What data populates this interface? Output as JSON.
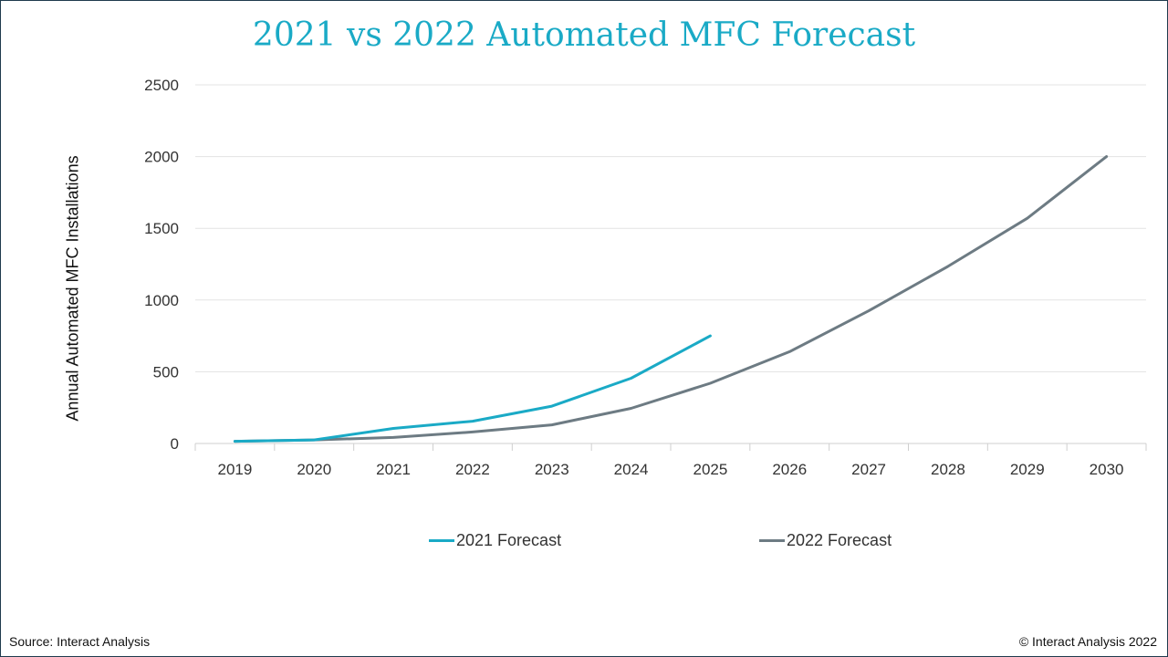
{
  "chart_data": {
    "type": "line",
    "title": "2021 vs 2022 Automated MFC Forecast",
    "xlabel": "",
    "ylabel": "Annual Automated MFC Installations",
    "categories": [
      "2019",
      "2020",
      "2021",
      "2022",
      "2023",
      "2024",
      "2025",
      "2026",
      "2027",
      "2028",
      "2029",
      "2030"
    ],
    "ylim": [
      0,
      2500
    ],
    "yticks": [
      0,
      500,
      1000,
      1500,
      2000,
      2500
    ],
    "grid": true,
    "legend_position": "bottom",
    "series": [
      {
        "name": "2021 Forecast",
        "color": "#1aaac6",
        "values": [
          15,
          25,
          105,
          155,
          260,
          455,
          750,
          null,
          null,
          null,
          null,
          null
        ]
      },
      {
        "name": "2022 Forecast",
        "color": "#6d7b83",
        "values": [
          15,
          25,
          42,
          80,
          130,
          245,
          420,
          640,
          925,
          1235,
          1570,
          2000
        ]
      }
    ]
  },
  "footer": {
    "source": "Source: Interact Analysis",
    "copyright": "© Interact Analysis 2022"
  }
}
